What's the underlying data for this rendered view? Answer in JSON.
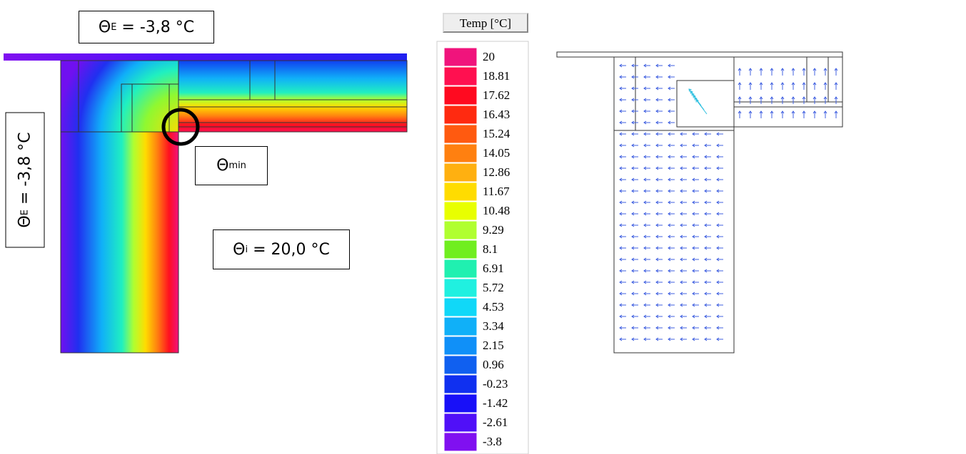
{
  "annotations": {
    "top": {
      "symbol": "Θ",
      "sub": "E",
      "text": " = -3,8 °C"
    },
    "side": {
      "symbol": "Θ",
      "sub": "E",
      "text": " = -3,8 °C"
    },
    "min": {
      "symbol": "Θ",
      "sub": "min"
    },
    "inner": {
      "symbol": "Θ",
      "sub": "i",
      "text": " = 20,0 °C"
    }
  },
  "legend": {
    "title": "Temp [°C]",
    "entries": [
      {
        "label": "20",
        "color": "#f0147c"
      },
      {
        "label": "18.81",
        "color": "#ff1050"
      },
      {
        "label": "17.62",
        "color": "#ff0a20"
      },
      {
        "label": "16.43",
        "color": "#ff2a10"
      },
      {
        "label": "15.24",
        "color": "#ff5a10"
      },
      {
        "label": "14.05",
        "color": "#ff8010"
      },
      {
        "label": "12.86",
        "color": "#ffb010"
      },
      {
        "label": "11.67",
        "color": "#ffdc00"
      },
      {
        "label": "10.48",
        "color": "#e8ff00"
      },
      {
        "label": "9.29",
        "color": "#b0ff30"
      },
      {
        "label": "8.1",
        "color": "#70ee20"
      },
      {
        "label": "6.91",
        "color": "#20f0b0"
      },
      {
        "label": "5.72",
        "color": "#20f0e0"
      },
      {
        "label": "4.53",
        "color": "#10d8f8"
      },
      {
        "label": "3.34",
        "color": "#10b0f8"
      },
      {
        "label": "2.15",
        "color": "#1090f8"
      },
      {
        "label": "0.96",
        "color": "#1060f0"
      },
      {
        "label": "-0.23",
        "color": "#1030f0"
      },
      {
        "label": "-1.42",
        "color": "#1810f8"
      },
      {
        "label": "-2.61",
        "color": "#5010f8"
      },
      {
        "label": "-3.8",
        "color": "#8010f0"
      }
    ]
  }
}
